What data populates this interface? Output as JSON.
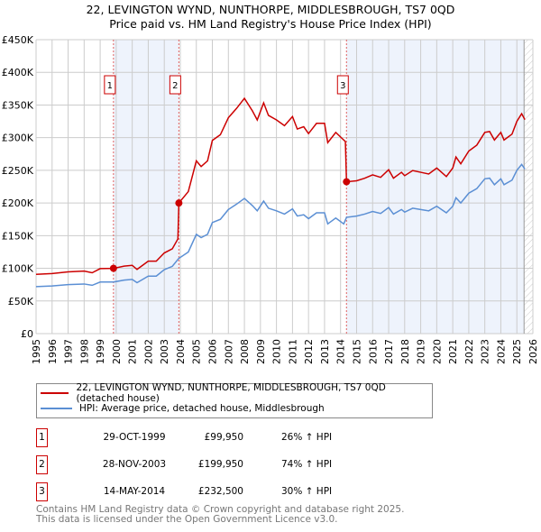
{
  "header": {
    "title": "22, LEVINGTON WYND, NUNTHORPE, MIDDLESBROUGH, TS7 0QD",
    "subtitle": "Price paid vs. HM Land Registry's House Price Index (HPI)"
  },
  "chart_data": {
    "type": "line",
    "title": "22, LEVINGTON WYND, NUNTHORPE, MIDDLESBROUGH, TS7 0QD",
    "subtitle": "Price paid vs. HM Land Registry's House Price Index (HPI)",
    "xlim": [
      1995,
      2026
    ],
    "ylim": [
      0,
      450
    ],
    "x_ticks": [
      "1995",
      "1996",
      "1997",
      "1998",
      "1999",
      "2000",
      "2001",
      "2002",
      "2003",
      "2004",
      "2005",
      "2006",
      "2007",
      "2008",
      "2009",
      "2010",
      "2011",
      "2012",
      "2013",
      "2014",
      "2015",
      "2016",
      "2017",
      "2018",
      "2019",
      "2020",
      "2021",
      "2022",
      "2023",
      "2024",
      "2025",
      "2026"
    ],
    "y_ticks": [
      "£0",
      "£50K",
      "£100K",
      "£150K",
      "£200K",
      "£250K",
      "£300K",
      "£350K",
      "£400K",
      "£450K"
    ],
    "y_tick_values": [
      0,
      50,
      100,
      150,
      200,
      250,
      300,
      350,
      400,
      450
    ],
    "grid": true,
    "shaded_ranges": [
      [
        1999.83,
        2003.91
      ],
      [
        2014.37,
        2025.45
      ]
    ],
    "forecast_hatch_from": 2025.45,
    "series": [
      {
        "name": "22, LEVINGTON WYND, NUNTHORPE, MIDDLESBROUGH, TS7 0QD (detached house)",
        "color": "#cc0000",
        "points": [
          [
            1995,
            90.7
          ],
          [
            1996,
            92
          ],
          [
            1997,
            94.5
          ],
          [
            1998,
            95.8
          ],
          [
            1998.5,
            93.2
          ],
          [
            1999,
            99.5
          ],
          [
            1999.83,
            99.95
          ],
          [
            2000.5,
            103.3
          ],
          [
            2001,
            104.6
          ],
          [
            2001.3,
            98.3
          ],
          [
            2002,
            110.9
          ],
          [
            2002.5,
            110.9
          ],
          [
            2003,
            123.5
          ],
          [
            2003.5,
            129.8
          ],
          [
            2003.85,
            145
          ],
          [
            2003.91,
            199.95
          ],
          [
            2004.5,
            217.5
          ],
          [
            2005,
            264.5
          ],
          [
            2005.3,
            255.8
          ],
          [
            2005.7,
            264.5
          ],
          [
            2006,
            295.8
          ],
          [
            2006.5,
            304.5
          ],
          [
            2007,
            330.6
          ],
          [
            2007.5,
            344.5
          ],
          [
            2008,
            360.2
          ],
          [
            2008.5,
            341
          ],
          [
            2008.8,
            327.1
          ],
          [
            2009.2,
            353.2
          ],
          [
            2009.5,
            334.1
          ],
          [
            2010,
            327.1
          ],
          [
            2010.5,
            318.4
          ],
          [
            2011,
            332.3
          ],
          [
            2011.3,
            313.2
          ],
          [
            2011.7,
            316.7
          ],
          [
            2012,
            306.2
          ],
          [
            2012.5,
            321.9
          ],
          [
            2013,
            321.9
          ],
          [
            2013.2,
            292.3
          ],
          [
            2013.7,
            308
          ],
          [
            2014.3,
            294
          ],
          [
            2014.37,
            232.5
          ],
          [
            2015,
            234
          ],
          [
            2015.5,
            237.9
          ],
          [
            2016,
            243.1
          ],
          [
            2016.5,
            239.2
          ],
          [
            2017,
            250.9
          ],
          [
            2017.3,
            237.9
          ],
          [
            2017.8,
            247
          ],
          [
            2018,
            241.8
          ],
          [
            2018.5,
            249.6
          ],
          [
            2019,
            247
          ],
          [
            2019.5,
            244.4
          ],
          [
            2020,
            253.5
          ],
          [
            2020.3,
            247
          ],
          [
            2020.6,
            240.5
          ],
          [
            2021,
            253.5
          ],
          [
            2021.2,
            270.4
          ],
          [
            2021.5,
            260
          ],
          [
            2022,
            279.5
          ],
          [
            2022.5,
            288.6
          ],
          [
            2023,
            308.1
          ],
          [
            2023.3,
            309.4
          ],
          [
            2023.6,
            296.4
          ],
          [
            2024,
            308.1
          ],
          [
            2024.2,
            296.4
          ],
          [
            2024.7,
            305.5
          ],
          [
            2025,
            325
          ],
          [
            2025.3,
            336.7
          ],
          [
            2025.5,
            327.6
          ]
        ]
      },
      {
        "name": "HPI: Average price, detached house, Middlesbrough",
        "color": "#5b8fd4",
        "points": [
          [
            1995,
            72
          ],
          [
            1996,
            73
          ],
          [
            1997,
            75
          ],
          [
            1998,
            76
          ],
          [
            1998.5,
            74
          ],
          [
            1999,
            79
          ],
          [
            1999.83,
            79
          ],
          [
            2000.5,
            82
          ],
          [
            2001,
            83
          ],
          [
            2001.3,
            78
          ],
          [
            2002,
            88
          ],
          [
            2002.5,
            88
          ],
          [
            2003,
            98
          ],
          [
            2003.5,
            103
          ],
          [
            2003.9,
            115
          ],
          [
            2004.5,
            125
          ],
          [
            2005,
            152
          ],
          [
            2005.3,
            147
          ],
          [
            2005.7,
            152
          ],
          [
            2006,
            170
          ],
          [
            2006.5,
            175
          ],
          [
            2007,
            190
          ],
          [
            2007.5,
            198
          ],
          [
            2008,
            207
          ],
          [
            2008.5,
            196
          ],
          [
            2008.8,
            188
          ],
          [
            2009.2,
            203
          ],
          [
            2009.5,
            192
          ],
          [
            2010,
            188
          ],
          [
            2010.5,
            183
          ],
          [
            2011,
            191
          ],
          [
            2011.3,
            180
          ],
          [
            2011.7,
            182
          ],
          [
            2012,
            176
          ],
          [
            2012.5,
            185
          ],
          [
            2013,
            185
          ],
          [
            2013.2,
            168
          ],
          [
            2013.7,
            177
          ],
          [
            2014.2,
            168
          ],
          [
            2014.37,
            178
          ],
          [
            2015,
            180
          ],
          [
            2015.5,
            183
          ],
          [
            2016,
            187
          ],
          [
            2016.5,
            184
          ],
          [
            2017,
            193
          ],
          [
            2017.3,
            183
          ],
          [
            2017.8,
            190
          ],
          [
            2018,
            186
          ],
          [
            2018.5,
            192
          ],
          [
            2019,
            190
          ],
          [
            2019.5,
            188
          ],
          [
            2020,
            195
          ],
          [
            2020.3,
            190
          ],
          [
            2020.6,
            185
          ],
          [
            2021,
            195
          ],
          [
            2021.2,
            208
          ],
          [
            2021.5,
            200
          ],
          [
            2022,
            215
          ],
          [
            2022.5,
            222
          ],
          [
            2023,
            237
          ],
          [
            2023.3,
            238
          ],
          [
            2023.6,
            228
          ],
          [
            2024,
            237
          ],
          [
            2024.2,
            228
          ],
          [
            2024.7,
            235
          ],
          [
            2025,
            250
          ],
          [
            2025.3,
            259
          ],
          [
            2025.5,
            252
          ]
        ]
      }
    ],
    "sales": [
      {
        "num": "1",
        "x": 1999.83,
        "y": 99.95,
        "date": "29-OCT-1999",
        "price": "£99,950",
        "hpi": "26% ↑ HPI"
      },
      {
        "num": "2",
        "x": 2003.91,
        "y": 199.95,
        "date": "28-NOV-2003",
        "price": "£199,950",
        "hpi": "74% ↑ HPI"
      },
      {
        "num": "3",
        "x": 2014.37,
        "y": 232.5,
        "date": "14-MAY-2014",
        "price": "£232,500",
        "hpi": "30% ↑ HPI"
      }
    ]
  },
  "legend": {
    "red": "22, LEVINGTON WYND, NUNTHORPE, MIDDLESBROUGH, TS7 0QD (detached house)",
    "blue": "HPI: Average price, detached house, Middlesbrough"
  },
  "footer": {
    "line1": "Contains HM Land Registry data © Crown copyright and database right 2025.",
    "line2": "This data is licensed under the Open Government Licence v3.0."
  }
}
